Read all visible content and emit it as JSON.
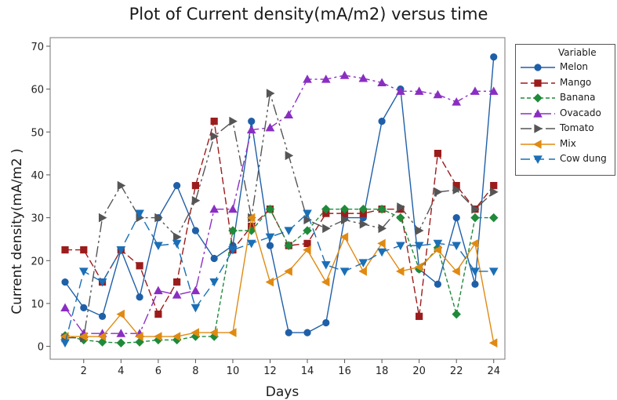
{
  "chart_data": {
    "type": "line",
    "title": "Plot of Current density(mA/m2) versus time",
    "xlabel": "Days",
    "ylabel": "Current density(mA/m2 )",
    "xlim": [
      0.2,
      24.6
    ],
    "ylim": [
      -3,
      72
    ],
    "xticks": [
      2,
      4,
      6,
      8,
      10,
      12,
      14,
      16,
      18,
      20,
      22,
      24
    ],
    "yticks": [
      0,
      10,
      20,
      30,
      40,
      50,
      60,
      70
    ],
    "x": [
      1,
      2,
      3,
      4,
      5,
      6,
      7,
      8,
      9,
      10,
      11,
      12,
      13,
      14,
      15,
      16,
      17,
      18,
      19,
      20,
      21,
      22,
      23,
      24
    ],
    "legend_title": "Variable",
    "legend_position": "right",
    "series": [
      {
        "name": "Melon",
        "color": "#1f5fa8",
        "dash": "",
        "marker": "circle",
        "values": [
          15,
          9,
          7,
          22.5,
          11.5,
          30,
          37.5,
          27,
          20.5,
          23.5,
          52.5,
          23.5,
          3.2,
          3.2,
          5.5,
          30,
          30,
          52.5,
          60,
          18,
          14.5,
          30,
          14.5,
          67.5
        ]
      },
      {
        "name": "Mango",
        "color": "#9b1c1c",
        "dash": "9,4",
        "marker": "square",
        "values": [
          22.5,
          22.5,
          15,
          22.5,
          18.8,
          7.5,
          15,
          37.5,
          52.5,
          22.5,
          28,
          32,
          23.5,
          24,
          31,
          31,
          31,
          32,
          32,
          7,
          45,
          37.5,
          32,
          37.5
        ]
      },
      {
        "name": "Banana",
        "color": "#1e8a3a",
        "dash": "5,3",
        "marker": "diamond",
        "values": [
          2.5,
          1.5,
          1,
          0.8,
          1,
          1.5,
          1.5,
          2.3,
          2.3,
          27,
          27,
          32,
          23.5,
          27,
          32,
          32,
          32,
          32,
          30,
          18,
          23,
          7.5,
          30,
          30
        ]
      },
      {
        "name": "Ovacado",
        "color": "#8a2ec2",
        "dash": "14,4,3,4",
        "marker": "triangle-up",
        "values": [
          9,
          3,
          3,
          3,
          3,
          13,
          12,
          13,
          32,
          32,
          50.5,
          51,
          54,
          62.3,
          62.3,
          63.2,
          62.5,
          61.5,
          59.5,
          59.5,
          58.7,
          57,
          59.5,
          59.5
        ]
      },
      {
        "name": "Tomato",
        "color": "#555555",
        "dash": "14,4,3,4,3,4",
        "marker": "triangle-right",
        "values": [
          2,
          2,
          30,
          37.5,
          30,
          30,
          25.5,
          34,
          49,
          52.5,
          30,
          59,
          44.5,
          29.5,
          27.5,
          29.5,
          28.5,
          27.5,
          32.5,
          27,
          36,
          36.5,
          32,
          36
        ]
      },
      {
        "name": "Mix",
        "color": "#e08a12",
        "dash": "",
        "marker": "triangle-left",
        "values": [
          2.3,
          2.3,
          2.3,
          7.5,
          2.3,
          2.3,
          2.3,
          3.2,
          3.2,
          3.2,
          30,
          15,
          17.5,
          22.5,
          15,
          25.5,
          17.5,
          24,
          17.5,
          18.5,
          22.5,
          17.5,
          24,
          0.8
        ]
      },
      {
        "name": "Cow dung",
        "color": "#1a6fb6",
        "dash": "12,6",
        "marker": "triangle-down",
        "values": [
          0.8,
          17.5,
          15,
          22.5,
          31,
          23.5,
          24,
          9,
          15,
          22.5,
          24,
          25.5,
          27,
          31,
          19,
          17.5,
          19.5,
          22,
          23.5,
          23.5,
          24,
          23.5,
          17.5,
          17.5
        ]
      }
    ]
  }
}
